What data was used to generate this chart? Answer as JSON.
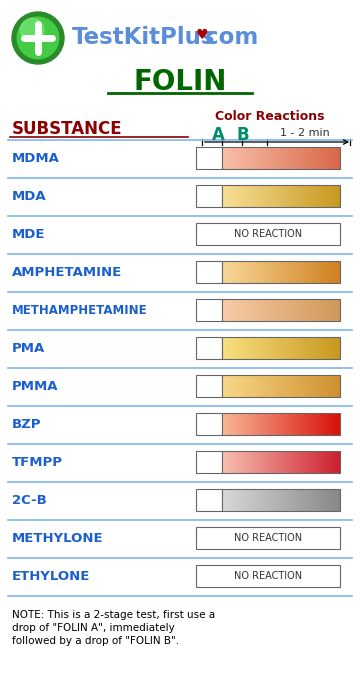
{
  "background_color": "#ffffff",
  "header_color": "#006600",
  "substance_header_color": "#8B0000",
  "substance_label_color": "#1a5fcf",
  "color_reactions_color": "#8B0000",
  "ab_color": "#008B6B",
  "substances": [
    "MDMA",
    "MDA",
    "MDE",
    "AMPHETAMINE",
    "METHAMPHETAMINE",
    "PMA",
    "PMMA",
    "BZP",
    "TFMPP",
    "2C-B",
    "METHYLONE",
    "ETHYLONE"
  ],
  "color_B_start": [
    "#f8c0a8",
    "#f8e098",
    "#ffffff",
    "#f8d898",
    "#f8cca8",
    "#f8e080",
    "#f8d888",
    "#f8b898",
    "#f8c0b0",
    "#d8d8d8",
    "#ffffff",
    "#ffffff"
  ],
  "color_B_end": [
    "#d86848",
    "#c89820",
    "#ffffff",
    "#d08020",
    "#d09858",
    "#c89820",
    "#d09030",
    "#d81008",
    "#cc2030",
    "#888888",
    "#ffffff",
    "#ffffff"
  ],
  "no_reaction": [
    false,
    false,
    true,
    false,
    false,
    false,
    false,
    false,
    false,
    false,
    true,
    true
  ],
  "note_line1": "NOTE: This is a 2-stage test, first use a",
  "note_line2": "drop of \"FOLIN A\", immediately",
  "note_line3": "followed by a drop of \"FOLIN B\"."
}
